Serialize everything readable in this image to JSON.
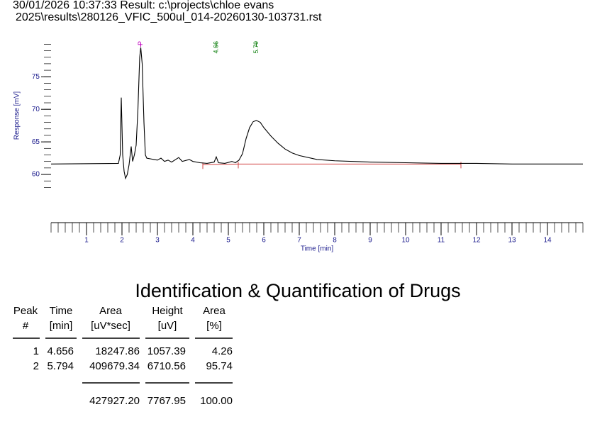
{
  "header": {
    "line1": "30/01/2026 10:37:33 Result: c:\\projects\\chloe evans",
    "line2": "2025\\results\\280126_VFIC_500ul_014-20260130-103731.rst"
  },
  "chart_data": {
    "type": "line",
    "xlabel": "Time [min]",
    "ylabel": "Response [mV]",
    "xlim": [
      0,
      15
    ],
    "ylim": [
      52.6,
      80.8
    ],
    "xticks": [
      1,
      2,
      3,
      4,
      5,
      6,
      7,
      8,
      9,
      10,
      11,
      12,
      13,
      14
    ],
    "yticks": [
      60,
      65,
      70,
      75
    ],
    "xminor_step": 0.2,
    "yminor_step": 1,
    "color": "#000000",
    "x": [
      0,
      1.9,
      1.95,
      1.98,
      2.02,
      2.06,
      2.1,
      2.15,
      2.2,
      2.26,
      2.3,
      2.35,
      2.4,
      2.45,
      2.5,
      2.53,
      2.57,
      2.62,
      2.66,
      2.7,
      2.8,
      2.9,
      3.0,
      3.1,
      3.2,
      3.3,
      3.4,
      3.6,
      3.7,
      3.9,
      4.0,
      4.2,
      4.4,
      4.6,
      4.66,
      4.72,
      4.9,
      5.1,
      5.2,
      5.3,
      5.4,
      5.5,
      5.6,
      5.7,
      5.79,
      5.9,
      6.0,
      6.2,
      6.4,
      6.6,
      6.8,
      7.0,
      7.5,
      8,
      9,
      10,
      11,
      12,
      13,
      14,
      15
    ],
    "values": [
      61.6,
      61.7,
      63,
      71.8,
      63,
      60.5,
      59.4,
      60,
      61.5,
      64.3,
      62,
      63,
      64.5,
      70,
      78,
      79.5,
      77,
      68,
      63,
      62.5,
      62.4,
      62.3,
      62.2,
      62.5,
      62,
      62.2,
      61.9,
      62.6,
      62,
      62.3,
      62,
      61.8,
      61.7,
      61.9,
      62.7,
      61.8,
      61.7,
      62,
      61.8,
      62.2,
      63.2,
      65.5,
      67.2,
      68.1,
      68.3,
      68,
      67.2,
      65.9,
      64.8,
      63.9,
      63.3,
      62.9,
      62.3,
      62.1,
      61.9,
      61.8,
      61.7,
      61.7,
      61.6,
      61.6,
      61.6
    ],
    "baselines": [
      {
        "color": "#d04040",
        "x": [
          4.28,
          5.28
        ],
        "values": [
          61.5,
          61.6
        ]
      },
      {
        "color": "#d04040",
        "x": [
          5.28,
          11.56
        ],
        "values": [
          61.6,
          61.6
        ]
      }
    ],
    "annotations": [
      {
        "x": 2.53,
        "label": "P",
        "color": "#c000c0"
      },
      {
        "x": 4.66,
        "label": "4.66",
        "color": "#108010"
      },
      {
        "x": 5.79,
        "label": "5.79",
        "color": "#108010"
      }
    ]
  },
  "table": {
    "title": "Identification & Quantification of Drugs",
    "headers": [
      [
        "Peak",
        "#"
      ],
      [
        "Time",
        "[min]"
      ],
      [
        "Area",
        "[uV*sec]"
      ],
      [
        "Height",
        "[uV]"
      ],
      [
        "Area",
        "[%]"
      ]
    ],
    "rows": [
      [
        "1",
        "4.656",
        "18247.86",
        "1057.39",
        "4.26"
      ],
      [
        "2",
        "5.794",
        "409679.34",
        "6710.56",
        "95.74"
      ]
    ],
    "totals": [
      "427927.20",
      "7767.95",
      "100.00"
    ]
  }
}
